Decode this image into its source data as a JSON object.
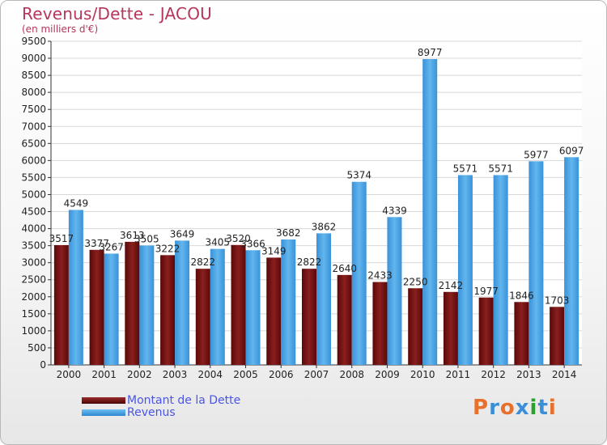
{
  "header": {
    "title": "Revenus/Dette - JACOU",
    "subtitle": "(en milliers d'€)"
  },
  "legend": {
    "items": [
      {
        "label": "Montant de la Dette",
        "color": "#7a1414"
      },
      {
        "label": "Revenus",
        "color": "#4aa3e2"
      }
    ]
  },
  "logo": {
    "text": "Proxiti",
    "letter_colors": [
      "#e8702a",
      "#3a8fd8",
      "#e8702a",
      "#3a8fd8",
      "#2ca02c",
      "#3a8fd8",
      "#e8702a"
    ]
  },
  "chart_data": {
    "type": "bar",
    "categories": [
      "2000",
      "2001",
      "2002",
      "2003",
      "2004",
      "2005",
      "2006",
      "2007",
      "2008",
      "2009",
      "2010",
      "2011",
      "2012",
      "2013",
      "2014"
    ],
    "series": [
      {
        "name": "Montant de la Dette",
        "color": "#7a1414",
        "values": [
          3517,
          3377,
          3613,
          3222,
          2822,
          3520,
          3149,
          2822,
          2640,
          2433,
          2250,
          2142,
          1977,
          1846,
          1703
        ],
        "labels": [
          "3517",
          "3377",
          "3613",
          "3222",
          "2822",
          "3520",
          "3149",
          "2822",
          "2640",
          "2433",
          "2250",
          "2142",
          "1977",
          "1846",
          "1703"
        ]
      },
      {
        "name": "Revenus",
        "color": "#4aa3e2",
        "values": [
          4549,
          3267,
          3505,
          3649,
          3405,
          3366,
          3682,
          3862,
          5374,
          4339,
          8977,
          5571,
          5571,
          5977,
          6097
        ],
        "labels": [
          "4549",
          "3267",
          "3505",
          "3649",
          "3405",
          "3366",
          "3682",
          "3862",
          "5374",
          "4339",
          "8977",
          "5571",
          "5571",
          "5977",
          "6097"
        ]
      }
    ],
    "yticks": [
      0,
      500,
      1000,
      1500,
      2000,
      2500,
      3000,
      3500,
      4000,
      4500,
      5000,
      5500,
      6000,
      6500,
      7000,
      7500,
      8000,
      8500,
      9000,
      9500
    ],
    "ylim": [
      0,
      9500
    ],
    "grid": true,
    "legend_position": "bottom-left"
  }
}
